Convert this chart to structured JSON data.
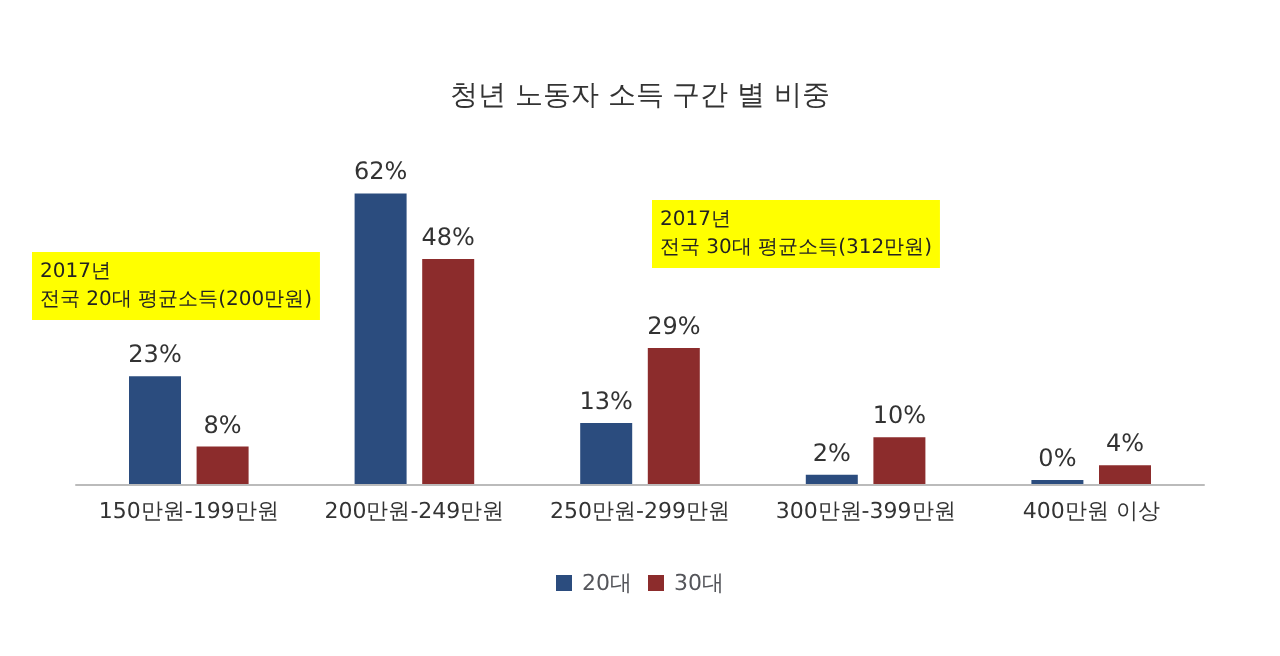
{
  "chart_data": {
    "type": "bar",
    "title": "청년 노동자 소득 구간 별 비중",
    "categories": [
      "150만원-199만원",
      "200만원-249만원",
      "250만원-299만원",
      "300만원-399만원",
      "400만원 이상"
    ],
    "series": [
      {
        "name": "20대",
        "color": "#2b4c7e",
        "values": [
          23,
          62,
          13,
          2,
          0
        ],
        "value_labels": [
          "23%",
          "62%",
          "13%",
          "2%",
          "0%"
        ]
      },
      {
        "name": "30대",
        "color": "#8c2c2c",
        "values": [
          8,
          48,
          29,
          10,
          4
        ],
        "value_labels": [
          "8%",
          "48%",
          "29%",
          "10%",
          "4%"
        ]
      }
    ],
    "annotations": [
      "2017년\n전국 20대 평균소득(200만원)",
      "2017년\n전국 30대 평균소득(312만원)"
    ],
    "legend": "bottom"
  }
}
